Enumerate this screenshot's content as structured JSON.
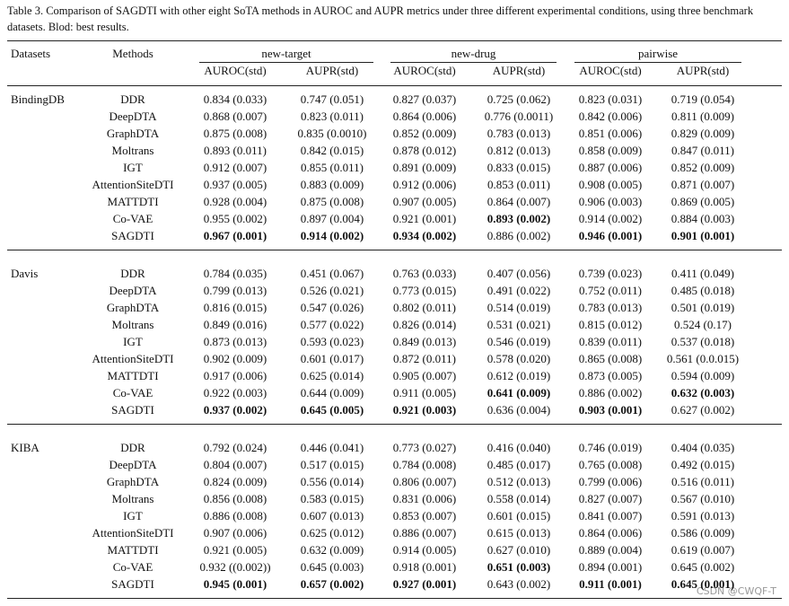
{
  "caption": "Table 3. Comparison of SAGDTI with other eight SoTA methods in AUROC and AUPR metrics under three different experimental conditions, using three benchmark datasets. Blod: best results.",
  "table": {
    "header": {
      "dataset": "Datasets",
      "method": "Methods",
      "conditions": [
        {
          "name": "new-target",
          "metrics": [
            "AUROC(std)",
            "AUPR(std)"
          ]
        },
        {
          "name": "new-drug",
          "metrics": [
            "AUROC(std)",
            "AUPR(std)"
          ]
        },
        {
          "name": "pairwise",
          "metrics": [
            "AUROC(std)",
            "AUPR(std)"
          ]
        }
      ]
    },
    "groups": [
      {
        "dataset": "BindingDB",
        "rows": [
          {
            "method": "DDR",
            "cells": [
              "0.834 (0.033)",
              "0.747 (0.051)",
              "0.827 (0.037)",
              "0.725 (0.062)",
              "0.823 (0.031)",
              "0.719 (0.054)"
            ]
          },
          {
            "method": "DeepDTA",
            "cells": [
              "0.868 (0.007)",
              "0.823 (0.011)",
              "0.864 (0.006)",
              "0.776 (0.0011)",
              "0.842 (0.006)",
              "0.811 (0.009)"
            ]
          },
          {
            "method": "GraphDTA",
            "cells": [
              "0.875 (0.008)",
              "0.835 (0.0010)",
              "0.852 (0.009)",
              "0.783 (0.013)",
              "0.851 (0.006)",
              "0.829 (0.009)"
            ]
          },
          {
            "method": "Moltrans",
            "cells": [
              "0.893 (0.011)",
              "0.842 (0.015)",
              "0.878 (0.012)",
              "0.812 (0.013)",
              "0.858 (0.009)",
              "0.847 (0.011)"
            ]
          },
          {
            "method": "IGT",
            "cells": [
              "0.912 (0.007)",
              "0.855 (0.011)",
              "0.891 (0.009)",
              "0.833 (0.015)",
              "0.887 (0.006)",
              "0.852 (0.009)"
            ]
          },
          {
            "method": "AttentionSiteDTI",
            "cells": [
              "0.937 (0.005)",
              "0.883 (0.009)",
              "0.912 (0.006)",
              "0.853 (0.011)",
              "0.908 (0.005)",
              "0.871 (0.007)"
            ]
          },
          {
            "method": "MATTDTI",
            "cells": [
              "0.928 (0.004)",
              "0.875 (0.008)",
              "0.907 (0.005)",
              "0.864 (0.007)",
              "0.906 (0.003)",
              "0.869 (0.005)"
            ]
          },
          {
            "method": "Co-VAE",
            "cells": [
              "0.955 (0.002)",
              "0.897 (0.004)",
              "0.921 (0.001)",
              "0.893 (0.002)",
              "0.914 (0.002)",
              "0.884 (0.003)"
            ],
            "bold": [
              3
            ]
          },
          {
            "method": "SAGDTI",
            "cells": [
              "0.967 (0.001)",
              "0.914 (0.002)",
              "0.934 (0.002)",
              "0.886 (0.002)",
              "0.946 (0.001)",
              "0.901 (0.001)"
            ],
            "bold": [
              0,
              1,
              2,
              4,
              5
            ]
          }
        ]
      },
      {
        "dataset": "Davis",
        "rows": [
          {
            "method": "DDR",
            "cells": [
              "0.784 (0.035)",
              "0.451 (0.067)",
              "0.763 (0.033)",
              "0.407 (0.056)",
              "0.739 (0.023)",
              "0.411 (0.049)"
            ]
          },
          {
            "method": "DeepDTA",
            "cells": [
              "0.799 (0.013)",
              "0.526 (0.021)",
              "0.773 (0.015)",
              "0.491 (0.022)",
              "0.752 (0.011)",
              "0.485 (0.018)"
            ]
          },
          {
            "method": "GraphDTA",
            "cells": [
              "0.816 (0.015)",
              "0.547 (0.026)",
              "0.802 (0.011)",
              "0.514 (0.019)",
              "0.783 (0.013)",
              "0.501 (0.019)"
            ]
          },
          {
            "method": "Moltrans",
            "cells": [
              "0.849 (0.016)",
              "0.577 (0.022)",
              "0.826 (0.014)",
              "0.531 (0.021)",
              "0.815 (0.012)",
              "0.524 (0.17)"
            ]
          },
          {
            "method": "IGT",
            "cells": [
              "0.873 (0.013)",
              "0.593 (0.023)",
              "0.849 (0.013)",
              "0.546 (0.019)",
              "0.839 (0.011)",
              "0.537 (0.018)"
            ]
          },
          {
            "method": "AttentionSiteDTI",
            "cells": [
              "0.902 (0.009)",
              "0.601 (0.017)",
              "0.872 (0.011)",
              "0.578 (0.020)",
              "0.865 (0.008)",
              "0.561 (0.0.015)"
            ]
          },
          {
            "method": "MATTDTI",
            "cells": [
              "0.917 (0.006)",
              "0.625 (0.014)",
              "0.905 (0.007)",
              "0.612 (0.019)",
              "0.873 (0.005)",
              "0.594 (0.009)"
            ]
          },
          {
            "method": "Co-VAE",
            "cells": [
              "0.922 (0.003)",
              "0.644 (0.009)",
              "0.911 (0.005)",
              "0.641 (0.009)",
              "0.886 (0.002)",
              "0.632 (0.003)"
            ],
            "bold": [
              3,
              5
            ]
          },
          {
            "method": "SAGDTI",
            "cells": [
              "0.937 (0.002)",
              "0.645 (0.005)",
              "0.921 (0.003)",
              "0.636 (0.004)",
              "0.903 (0.001)",
              "0.627 (0.002)"
            ],
            "bold": [
              0,
              1,
              2,
              4
            ]
          }
        ]
      },
      {
        "dataset": "KIBA",
        "rows": [
          {
            "method": "DDR",
            "cells": [
              "0.792 (0.024)",
              "0.446 (0.041)",
              "0.773 (0.027)",
              "0.416 (0.040)",
              "0.746 (0.019)",
              "0.404 (0.035)"
            ]
          },
          {
            "method": "DeepDTA",
            "cells": [
              "0.804 (0.007)",
              "0.517 (0.015)",
              "0.784 (0.008)",
              "0.485 (0.017)",
              "0.765 (0.008)",
              "0.492 (0.015)"
            ]
          },
          {
            "method": "GraphDTA",
            "cells": [
              "0.824 (0.009)",
              "0.556 (0.014)",
              "0.806 (0.007)",
              "0.512 (0.013)",
              "0.799 (0.006)",
              "0.516 (0.011)"
            ]
          },
          {
            "method": "Moltrans",
            "cells": [
              "0.856 (0.008)",
              "0.583 (0.015)",
              "0.831 (0.006)",
              "0.558 (0.014)",
              "0.827 (0.007)",
              "0.567 (0.010)"
            ]
          },
          {
            "method": "IGT",
            "cells": [
              "0.886 (0.008)",
              "0.607 (0.013)",
              "0.853 (0.007)",
              "0.601 (0.015)",
              "0.841 (0.007)",
              "0.591 (0.013)"
            ]
          },
          {
            "method": "AttentionSiteDTI",
            "cells": [
              "0.907 (0.006)",
              "0.625 (0.012)",
              "0.886 (0.007)",
              "0.615 (0.013)",
              "0.864 (0.006)",
              "0.586 (0.009)"
            ]
          },
          {
            "method": "MATTDTI",
            "cells": [
              "0.921 (0.005)",
              "0.632 (0.009)",
              "0.914 (0.005)",
              "0.627 (0.010)",
              "0.889 (0.004)",
              "0.619 (0.007)"
            ]
          },
          {
            "method": "Co-VAE",
            "cells": [
              "0.932 ((0.002))",
              "0.645 (0.003)",
              "0.918 (0.001)",
              "0.651 (0.003)",
              "0.894 (0.001)",
              "0.645 (0.002)"
            ],
            "bold": [
              3
            ]
          },
          {
            "method": "SAGDTI",
            "cells": [
              "0.945 (0.001)",
              "0.657 (0.002)",
              "0.927 (0.001)",
              "0.643 (0.002)",
              "0.911 (0.001)",
              "0.645 (0.001)"
            ],
            "bold": [
              0,
              1,
              2,
              4,
              5
            ]
          }
        ]
      }
    ]
  },
  "watermark": "CSDN @CWQF-T"
}
